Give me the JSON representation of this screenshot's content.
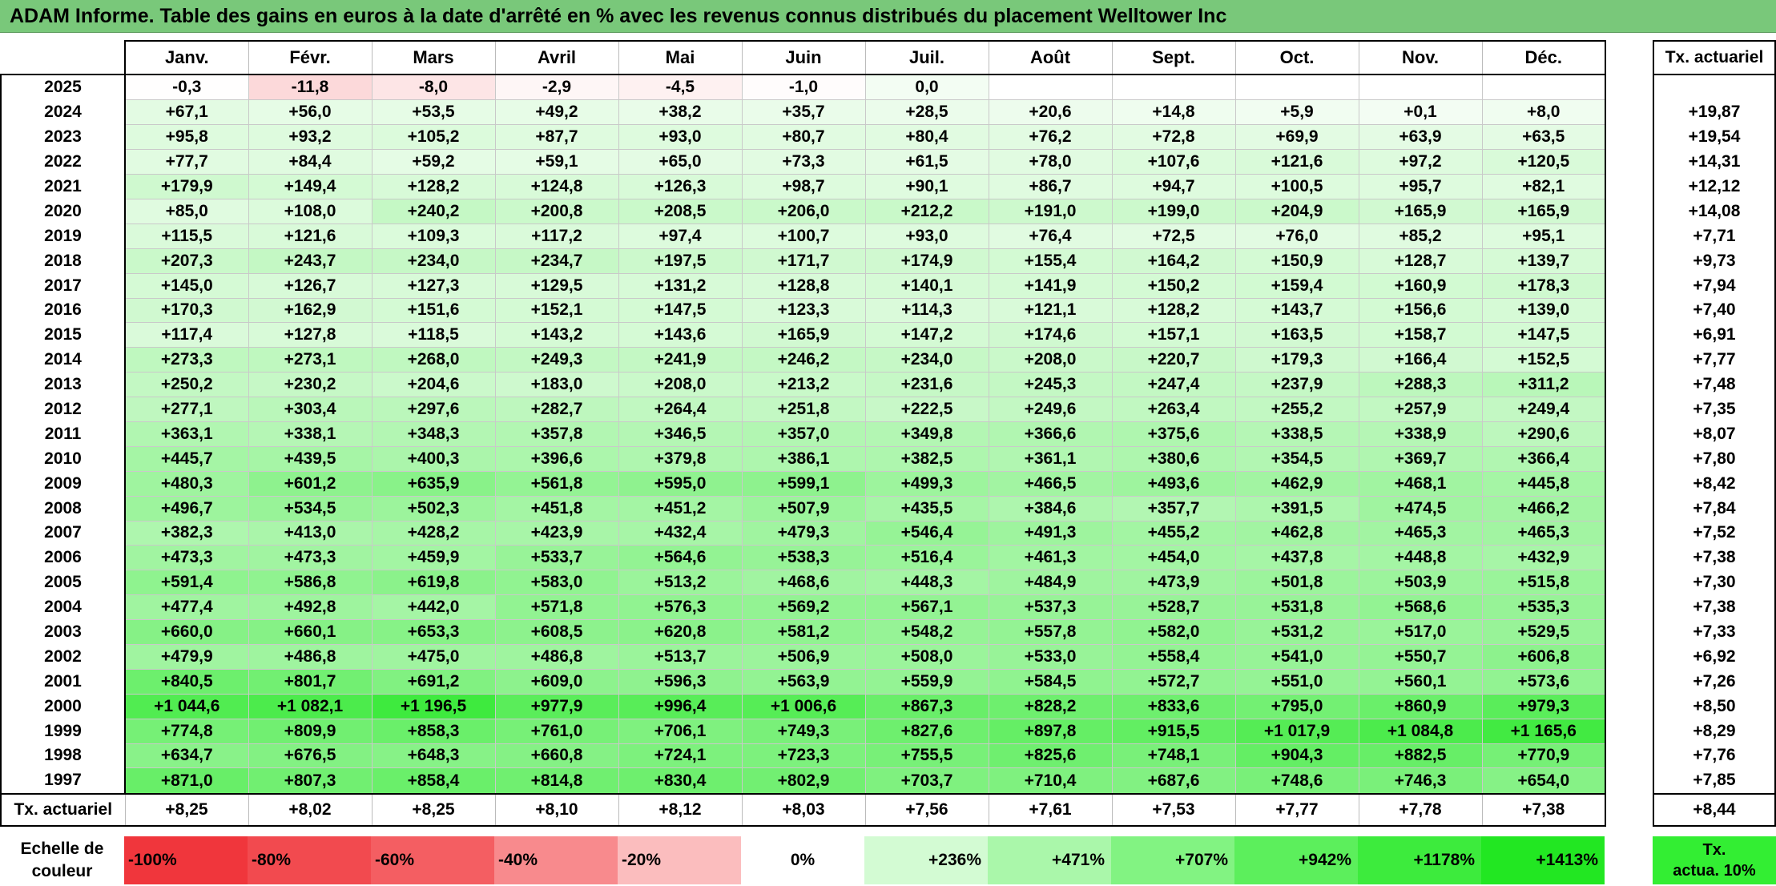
{
  "title": "ADAM Informe. Table des gains en euros à la date d'arrêté en % avec les revenus connus distribués du placement Welltower Inc",
  "months": [
    "Janv.",
    "Févr.",
    "Mars",
    "Avril",
    "Mai",
    "Juin",
    "Juil.",
    "Août",
    "Sept.",
    "Oct.",
    "Nov.",
    "Déc."
  ],
  "tx_header": "Tx. actuariel",
  "rows": [
    {
      "year": "2025",
      "values": [
        "-0,3",
        "-11,8",
        "-8,0",
        "-2,9",
        "-4,5",
        "-1,0",
        "0,0",
        "",
        "",
        "",
        "",
        ""
      ],
      "tx": ""
    },
    {
      "year": "2024",
      "values": [
        "+67,1",
        "+56,0",
        "+53,5",
        "+49,2",
        "+38,2",
        "+35,7",
        "+28,5",
        "+20,6",
        "+14,8",
        "+5,9",
        "+0,1",
        "+8,0"
      ],
      "tx": "+19,87"
    },
    {
      "year": "2023",
      "values": [
        "+95,8",
        "+93,2",
        "+105,2",
        "+87,7",
        "+93,0",
        "+80,7",
        "+80,4",
        "+76,2",
        "+72,8",
        "+69,9",
        "+63,9",
        "+63,5"
      ],
      "tx": "+19,54"
    },
    {
      "year": "2022",
      "values": [
        "+77,7",
        "+84,4",
        "+59,2",
        "+59,1",
        "+65,0",
        "+73,3",
        "+61,5",
        "+78,0",
        "+107,6",
        "+121,6",
        "+97,2",
        "+120,5"
      ],
      "tx": "+14,31"
    },
    {
      "year": "2021",
      "values": [
        "+179,9",
        "+149,4",
        "+128,2",
        "+124,8",
        "+126,3",
        "+98,7",
        "+90,1",
        "+86,7",
        "+94,7",
        "+100,5",
        "+95,7",
        "+82,1"
      ],
      "tx": "+12,12"
    },
    {
      "year": "2020",
      "values": [
        "+85,0",
        "+108,0",
        "+240,2",
        "+200,8",
        "+208,5",
        "+206,0",
        "+212,2",
        "+191,0",
        "+199,0",
        "+204,9",
        "+165,9",
        "+165,9"
      ],
      "tx": "+14,08"
    },
    {
      "year": "2019",
      "values": [
        "+115,5",
        "+121,6",
        "+109,3",
        "+117,2",
        "+97,4",
        "+100,7",
        "+93,0",
        "+76,4",
        "+72,5",
        "+76,0",
        "+85,2",
        "+95,1"
      ],
      "tx": "+7,71"
    },
    {
      "year": "2018",
      "values": [
        "+207,3",
        "+243,7",
        "+234,0",
        "+234,7",
        "+197,5",
        "+171,7",
        "+174,9",
        "+155,4",
        "+164,2",
        "+150,9",
        "+128,7",
        "+139,7"
      ],
      "tx": "+9,73"
    },
    {
      "year": "2017",
      "values": [
        "+145,0",
        "+126,7",
        "+127,3",
        "+129,5",
        "+131,2",
        "+128,8",
        "+140,1",
        "+141,9",
        "+150,2",
        "+159,4",
        "+160,9",
        "+178,3"
      ],
      "tx": "+7,94"
    },
    {
      "year": "2016",
      "values": [
        "+170,3",
        "+162,9",
        "+151,6",
        "+152,1",
        "+147,5",
        "+123,3",
        "+114,3",
        "+121,1",
        "+128,2",
        "+143,7",
        "+156,6",
        "+139,0"
      ],
      "tx": "+7,40"
    },
    {
      "year": "2015",
      "values": [
        "+117,4",
        "+127,8",
        "+118,5",
        "+143,2",
        "+143,6",
        "+165,9",
        "+147,2",
        "+174,6",
        "+157,1",
        "+163,5",
        "+158,7",
        "+147,5"
      ],
      "tx": "+6,91"
    },
    {
      "year": "2014",
      "values": [
        "+273,3",
        "+273,1",
        "+268,0",
        "+249,3",
        "+241,9",
        "+246,2",
        "+234,0",
        "+208,0",
        "+220,7",
        "+179,3",
        "+166,4",
        "+152,5"
      ],
      "tx": "+7,77"
    },
    {
      "year": "2013",
      "values": [
        "+250,2",
        "+230,2",
        "+204,6",
        "+183,0",
        "+208,0",
        "+213,2",
        "+231,6",
        "+245,3",
        "+247,4",
        "+237,9",
        "+288,3",
        "+311,2"
      ],
      "tx": "+7,48"
    },
    {
      "year": "2012",
      "values": [
        "+277,1",
        "+303,4",
        "+297,6",
        "+282,7",
        "+264,4",
        "+251,8",
        "+222,5",
        "+249,6",
        "+263,4",
        "+255,2",
        "+257,9",
        "+249,4"
      ],
      "tx": "+7,35"
    },
    {
      "year": "2011",
      "values": [
        "+363,1",
        "+338,1",
        "+348,3",
        "+357,8",
        "+346,5",
        "+357,0",
        "+349,8",
        "+366,6",
        "+375,6",
        "+338,5",
        "+338,9",
        "+290,6"
      ],
      "tx": "+8,07"
    },
    {
      "year": "2010",
      "values": [
        "+445,7",
        "+439,5",
        "+400,3",
        "+396,6",
        "+379,8",
        "+386,1",
        "+382,5",
        "+361,1",
        "+380,6",
        "+354,5",
        "+369,7",
        "+366,4"
      ],
      "tx": "+7,80"
    },
    {
      "year": "2009",
      "values": [
        "+480,3",
        "+601,2",
        "+635,9",
        "+561,8",
        "+595,0",
        "+599,1",
        "+499,3",
        "+466,5",
        "+493,6",
        "+462,9",
        "+468,1",
        "+445,8"
      ],
      "tx": "+8,42"
    },
    {
      "year": "2008",
      "values": [
        "+496,7",
        "+534,5",
        "+502,3",
        "+451,8",
        "+451,2",
        "+507,9",
        "+435,5",
        "+384,6",
        "+357,7",
        "+391,5",
        "+474,5",
        "+466,2"
      ],
      "tx": "+7,84"
    },
    {
      "year": "2007",
      "values": [
        "+382,3",
        "+413,0",
        "+428,2",
        "+423,9",
        "+432,4",
        "+479,3",
        "+546,4",
        "+491,3",
        "+455,2",
        "+462,8",
        "+465,3",
        "+465,3"
      ],
      "tx": "+7,52"
    },
    {
      "year": "2006",
      "values": [
        "+473,3",
        "+473,3",
        "+459,9",
        "+533,7",
        "+564,6",
        "+538,3",
        "+516,4",
        "+461,3",
        "+454,0",
        "+437,8",
        "+448,8",
        "+432,9"
      ],
      "tx": "+7,38"
    },
    {
      "year": "2005",
      "values": [
        "+591,4",
        "+586,8",
        "+619,8",
        "+583,0",
        "+513,2",
        "+468,6",
        "+448,3",
        "+484,9",
        "+473,9",
        "+501,8",
        "+503,9",
        "+515,8"
      ],
      "tx": "+7,30"
    },
    {
      "year": "2004",
      "values": [
        "+477,4",
        "+492,8",
        "+442,0",
        "+571,8",
        "+576,3",
        "+569,2",
        "+567,1",
        "+537,3",
        "+528,7",
        "+531,8",
        "+568,6",
        "+535,3"
      ],
      "tx": "+7,38"
    },
    {
      "year": "2003",
      "values": [
        "+660,0",
        "+660,1",
        "+653,3",
        "+608,5",
        "+620,8",
        "+581,2",
        "+548,2",
        "+557,8",
        "+582,0",
        "+531,2",
        "+517,0",
        "+529,5"
      ],
      "tx": "+7,33"
    },
    {
      "year": "2002",
      "values": [
        "+479,9",
        "+486,8",
        "+475,0",
        "+486,8",
        "+513,7",
        "+506,9",
        "+508,0",
        "+533,0",
        "+558,4",
        "+541,0",
        "+550,7",
        "+606,8"
      ],
      "tx": "+6,92"
    },
    {
      "year": "2001",
      "values": [
        "+840,5",
        "+801,7",
        "+691,2",
        "+609,0",
        "+596,3",
        "+563,9",
        "+559,9",
        "+584,5",
        "+572,7",
        "+551,0",
        "+560,1",
        "+573,6"
      ],
      "tx": "+7,26"
    },
    {
      "year": "2000",
      "values": [
        "+1 044,6",
        "+1 082,1",
        "+1 196,5",
        "+977,9",
        "+996,4",
        "+1 006,6",
        "+867,3",
        "+828,2",
        "+833,6",
        "+795,0",
        "+860,9",
        "+979,3"
      ],
      "tx": "+8,50"
    },
    {
      "year": "1999",
      "values": [
        "+774,8",
        "+809,9",
        "+858,3",
        "+761,0",
        "+706,1",
        "+749,3",
        "+827,6",
        "+897,8",
        "+915,5",
        "+1 017,9",
        "+1 084,8",
        "+1 165,6"
      ],
      "tx": "+8,29"
    },
    {
      "year": "1998",
      "values": [
        "+634,7",
        "+676,5",
        "+648,3",
        "+660,8",
        "+724,1",
        "+723,3",
        "+755,5",
        "+825,6",
        "+748,1",
        "+904,3",
        "+882,5",
        "+770,9"
      ],
      "tx": "+7,76"
    },
    {
      "year": "1997",
      "values": [
        "+871,0",
        "+807,3",
        "+858,4",
        "+814,8",
        "+830,4",
        "+802,9",
        "+703,7",
        "+710,4",
        "+687,6",
        "+748,6",
        "+746,3",
        "+654,0"
      ],
      "tx": "+7,85"
    }
  ],
  "summary": {
    "label": "Tx. actuariel",
    "values": [
      "+8,25",
      "+8,02",
      "+8,25",
      "+8,10",
      "+8,12",
      "+8,03",
      "+7,56",
      "+7,61",
      "+7,53",
      "+7,77",
      "+7,78",
      "+7,38"
    ],
    "tx": "+8,44"
  },
  "scale": {
    "label_line1": "Echelle de",
    "label_line2": "couleur",
    "swatches": [
      {
        "label": "-100%",
        "color": "#f0363c"
      },
      {
        "label": "-80%",
        "color": "#f24a4f"
      },
      {
        "label": "-60%",
        "color": "#f45e62"
      },
      {
        "label": "-40%",
        "color": "#f88a8d"
      },
      {
        "label": "-20%",
        "color": "#fbbdbe"
      },
      {
        "label": "0%",
        "color": "#ffffff"
      },
      {
        "label": "+236%",
        "color": "#d3fbd3"
      },
      {
        "label": "+471%",
        "color": "#aaf7aa"
      },
      {
        "label": "+707%",
        "color": "#82f382"
      },
      {
        "label": "+942%",
        "color": "#5cef5c"
      },
      {
        "label": "+1178%",
        "color": "#3deb3d"
      },
      {
        "label": "+1413%",
        "color": "#22e722"
      }
    ],
    "tx_line1": "Tx.",
    "tx_line2": "actua. 10%",
    "tx_color": "#33ee33"
  }
}
